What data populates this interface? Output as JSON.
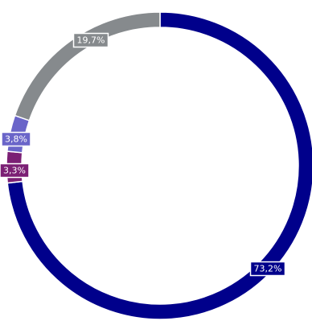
{
  "chart_data": {
    "type": "pie",
    "variant": "donut",
    "direction": "clockwise-from-top",
    "slices": [
      {
        "label_text": "73,2%",
        "value": 73.2,
        "color": "#00008b"
      },
      {
        "label_text": "3,3%",
        "value": 3.3,
        "color": "#7b1f74"
      },
      {
        "label_text": "3,8%",
        "value": 3.8,
        "color": "#6a65c9"
      },
      {
        "label_text": "19,7%",
        "value": 19.7,
        "color": "#868a8d"
      }
    ],
    "legend": "none",
    "title": ""
  }
}
